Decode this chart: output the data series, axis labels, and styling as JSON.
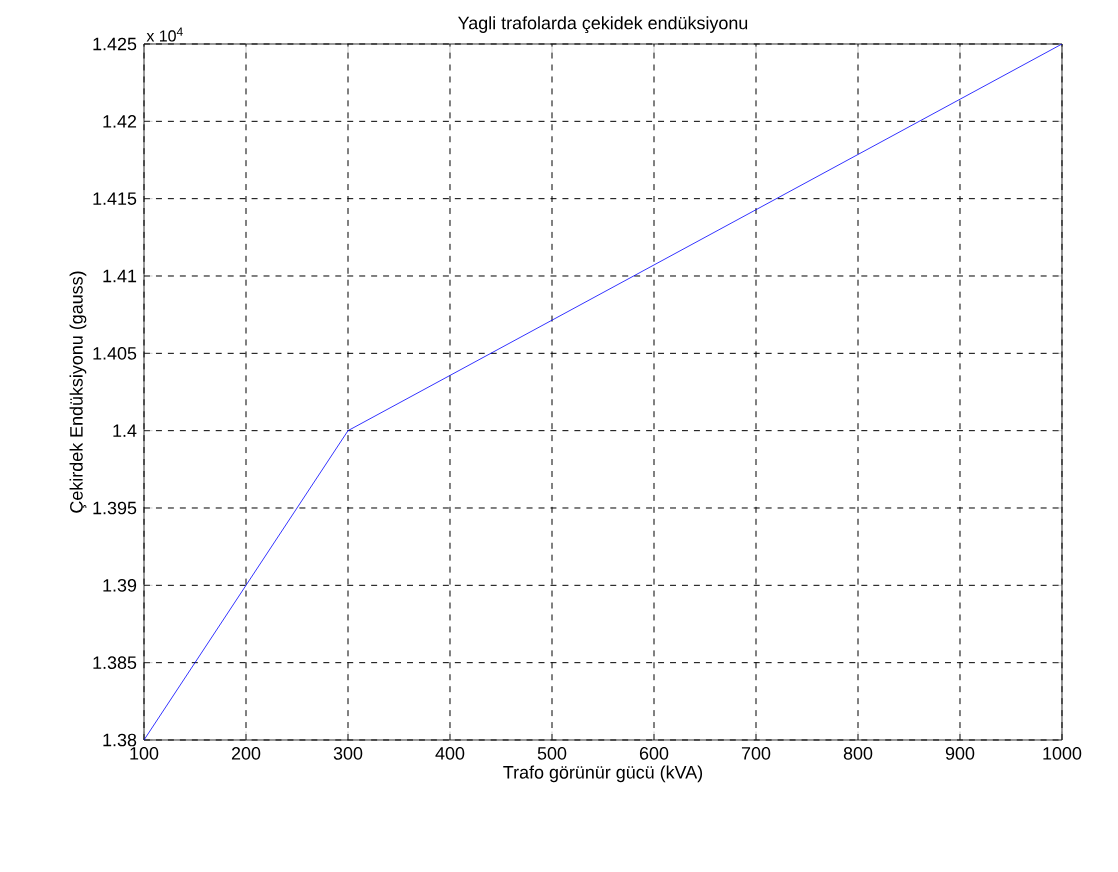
{
  "chart_data": {
    "type": "line",
    "title": "Yagli trafolarda çekidek endüksiyonu",
    "xlabel": "Trafo görünür gücü (kVA)",
    "ylabel": "Çekirdek Endüksiyonu (gauss)",
    "x": [
      100,
      300,
      1000
    ],
    "series": [
      {
        "color": "#0000ff",
        "values": [
          1.38,
          1.4,
          1.425
        ]
      }
    ],
    "xlim": [
      100,
      1000
    ],
    "xticks": [
      100,
      200,
      300,
      400,
      500,
      600,
      700,
      800,
      900,
      1000
    ],
    "ylim": [
      1.38,
      1.425
    ],
    "yticks": [
      1.38,
      1.385,
      1.39,
      1.395,
      1.4,
      1.405,
      1.41,
      1.415,
      1.42,
      1.425
    ],
    "grid": true,
    "line_style": "solid",
    "annotations": [
      "x 10$^{4}$"
    ]
  }
}
